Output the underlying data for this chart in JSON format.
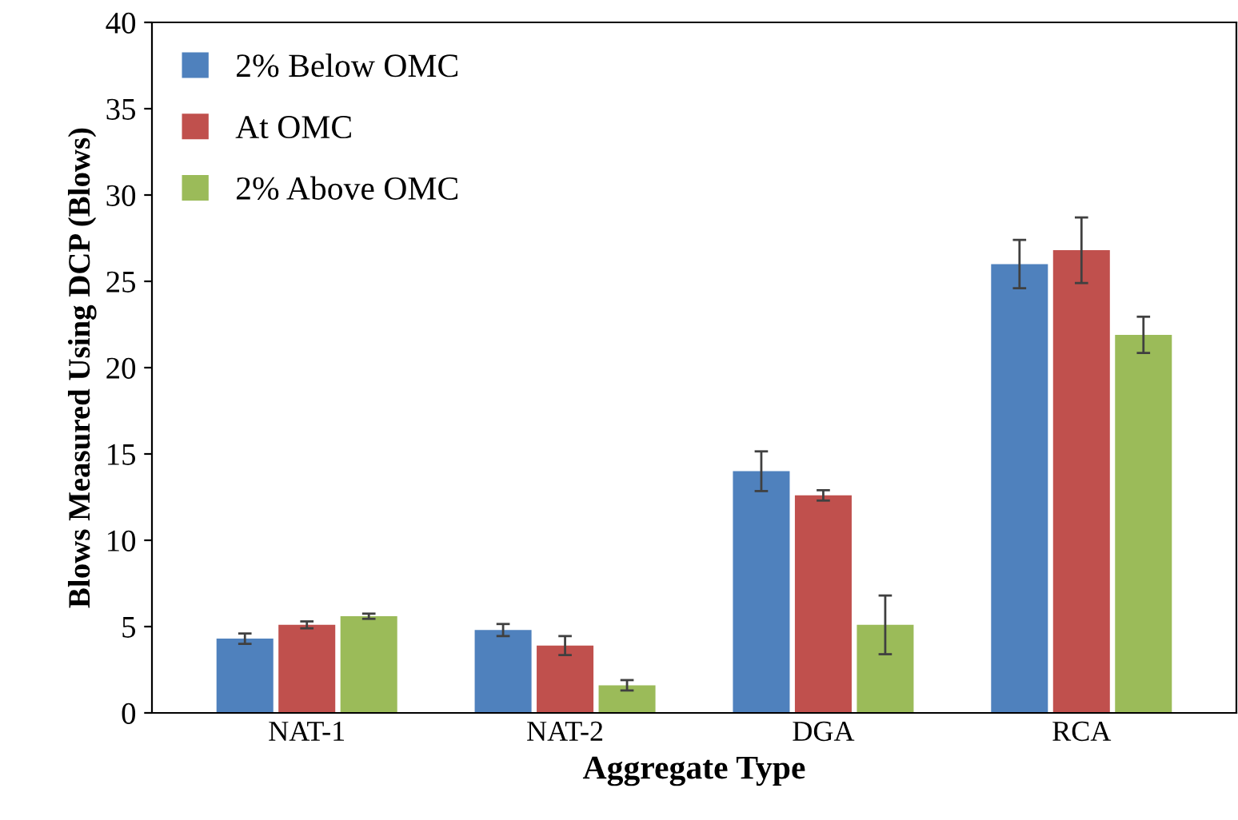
{
  "chart_data": {
    "type": "bar",
    "xlabel": "Aggregate Type",
    "ylabel": "Blows Measured Using DCP (Blows)",
    "categories": [
      "NAT-1",
      "NAT-2",
      "DGA",
      "RCA"
    ],
    "series": [
      {
        "name": "2% Below OMC",
        "color": "#4f81bd",
        "values": [
          4.3,
          4.8,
          14.0,
          26.0
        ],
        "errors": [
          0.3,
          0.35,
          1.15,
          1.4
        ]
      },
      {
        "name": "At OMC",
        "color": "#c0504d",
        "values": [
          5.1,
          3.9,
          12.6,
          26.8
        ],
        "errors": [
          0.2,
          0.55,
          0.3,
          1.9
        ]
      },
      {
        "name": "2% Above OMC",
        "color": "#9bbb59",
        "values": [
          5.6,
          1.6,
          5.1,
          21.9
        ],
        "errors": [
          0.15,
          0.3,
          1.7,
          1.05
        ]
      }
    ],
    "ylim": [
      0,
      40
    ],
    "yticks": [
      0,
      5,
      10,
      15,
      20,
      25,
      30,
      35,
      40
    ],
    "grid": false,
    "legend": "top left"
  }
}
